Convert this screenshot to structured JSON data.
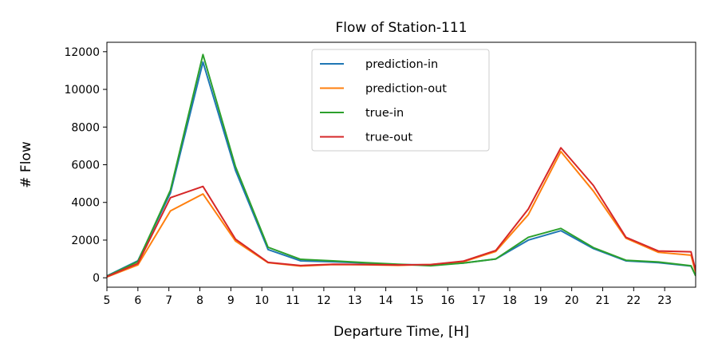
{
  "chart_data": {
    "type": "line",
    "title": "Flow of Station-111",
    "xlabel": "Departure Time, [H]",
    "ylabel": "# Flow",
    "xlim": [
      5,
      24
    ],
    "ylim": [
      -500,
      12500
    ],
    "xticks": [
      5,
      6,
      7,
      8,
      9,
      10,
      11,
      12,
      13,
      14,
      15,
      16,
      17,
      18,
      19,
      20,
      21,
      22,
      23
    ],
    "yticks": [
      0,
      2000,
      4000,
      6000,
      8000,
      10000,
      12000
    ],
    "legend_position": "top-center",
    "grid": false,
    "x": [
      5.0,
      6.0,
      7.05,
      8.1,
      9.15,
      10.2,
      11.25,
      12.3,
      13.35,
      14.4,
      15.45,
      16.5,
      17.55,
      18.6,
      19.65,
      20.7,
      21.75,
      22.8,
      23.85,
      24.0
    ],
    "series": [
      {
        "name": "prediction-in",
        "color": "#1f77b4",
        "values": [
          100,
          900,
          4500,
          11450,
          5700,
          1500,
          900,
          850,
          780,
          700,
          680,
          780,
          1000,
          2000,
          2500,
          1550,
          900,
          800,
          620,
          120
        ]
      },
      {
        "name": "prediction-out",
        "color": "#ff7f0e",
        "values": [
          40,
          680,
          3550,
          4450,
          1950,
          800,
          620,
          700,
          690,
          660,
          700,
          850,
          1400,
          3350,
          6700,
          4600,
          2100,
          1350,
          1200,
          280
        ]
      },
      {
        "name": "true-in",
        "color": "#2ca02c",
        "values": [
          80,
          860,
          4650,
          11850,
          5900,
          1620,
          980,
          900,
          800,
          720,
          640,
          780,
          1000,
          2150,
          2620,
          1600,
          930,
          840,
          640,
          100
        ]
      },
      {
        "name": "true-out",
        "color": "#d62728",
        "values": [
          60,
          760,
          4250,
          4850,
          2050,
          820,
          650,
          720,
          700,
          680,
          700,
          880,
          1450,
          3650,
          6900,
          4900,
          2150,
          1420,
          1380,
          380
        ]
      }
    ]
  }
}
